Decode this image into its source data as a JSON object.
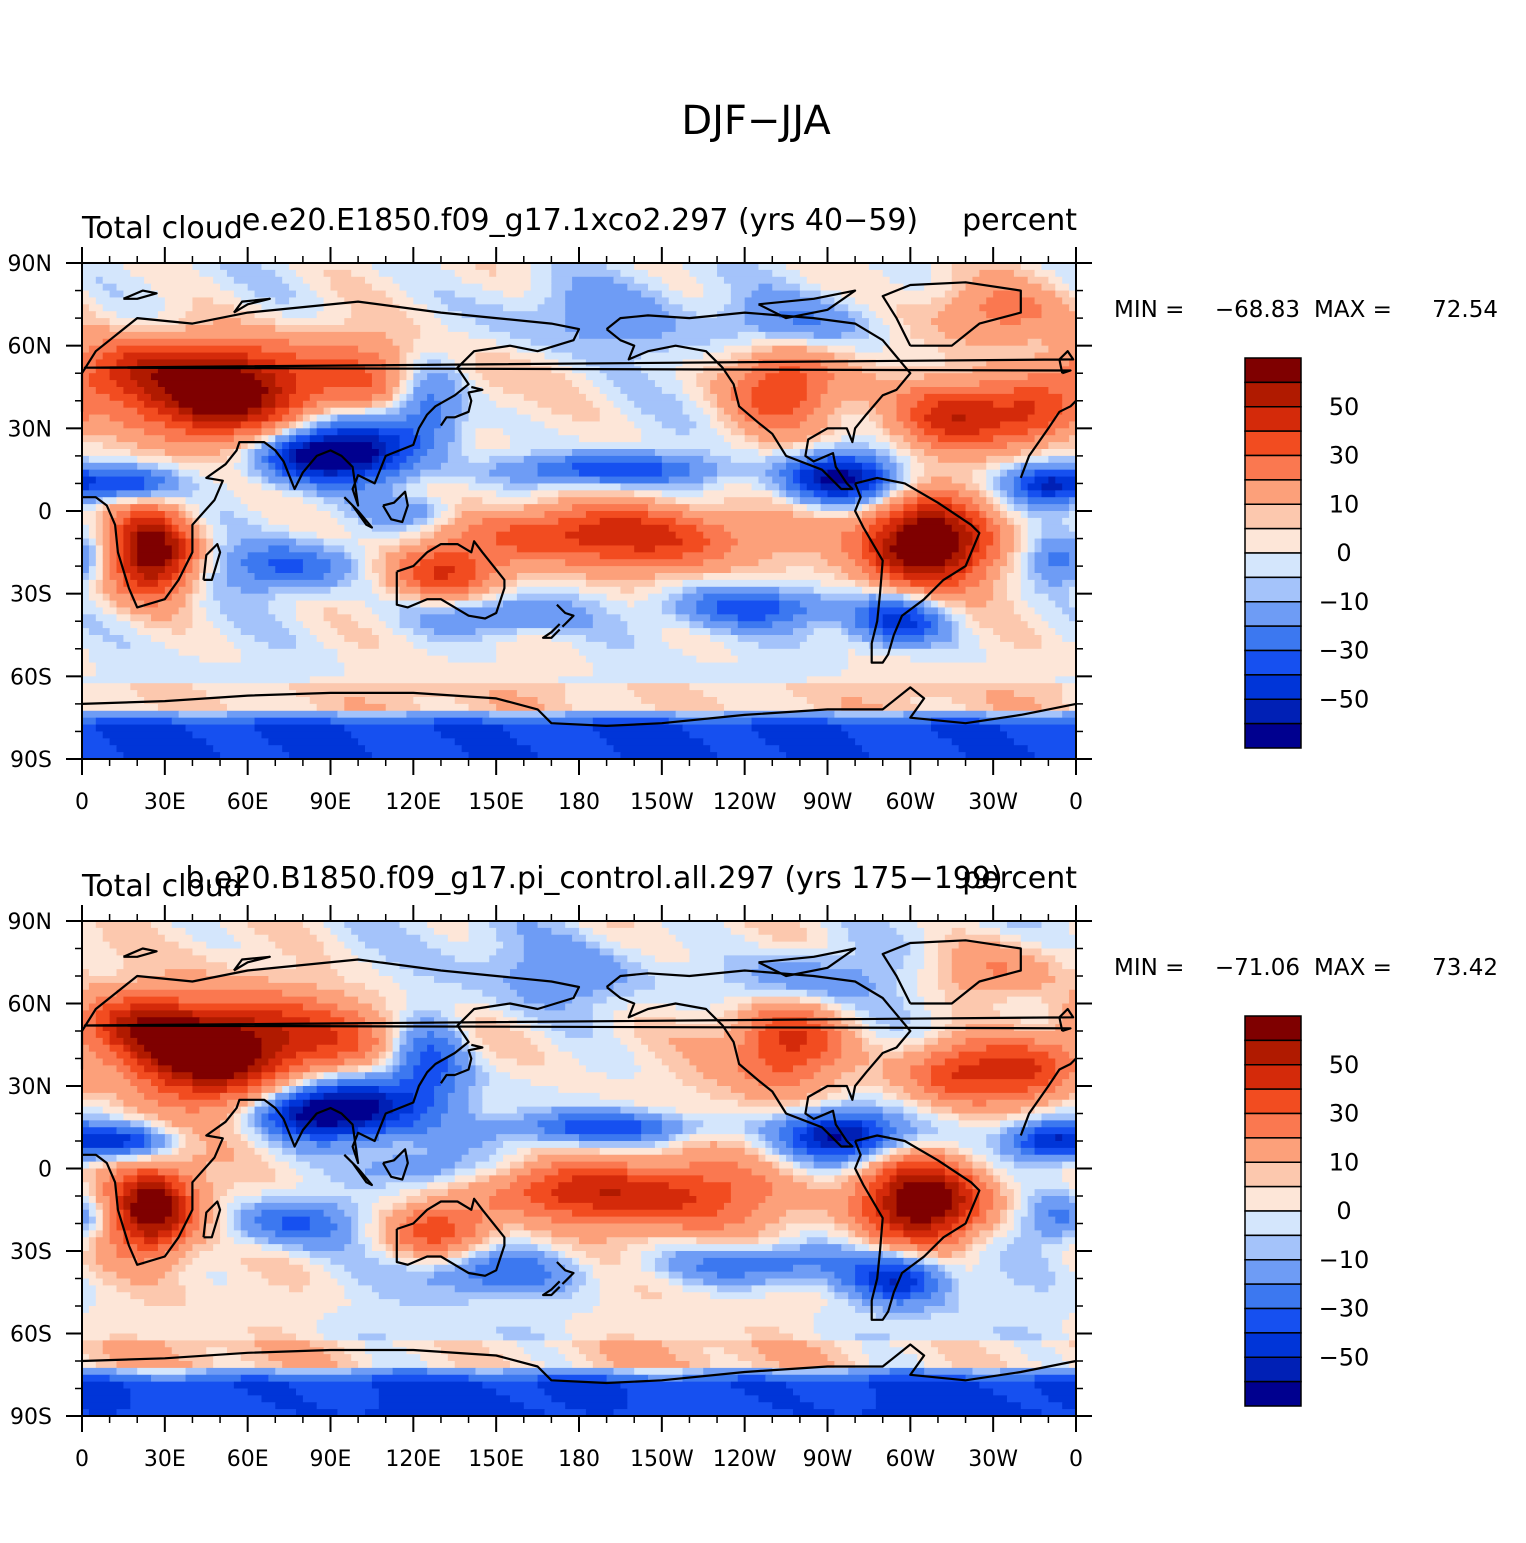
{
  "chart_data": {
    "type": "heatmap",
    "title": "DJF−JJA",
    "lat_tick_labels": [
      "90N",
      "60N",
      "30N",
      "0",
      "30S",
      "60S",
      "90S"
    ],
    "lon_tick_labels": [
      "0",
      "30E",
      "60E",
      "90E",
      "120E",
      "150E",
      "180",
      "150W",
      "120W",
      "90W",
      "60W",
      "30W",
      "0"
    ],
    "lon_range": [
      0,
      360
    ],
    "lat_range": [
      -90,
      90
    ],
    "colorbar": {
      "levels": [
        -60,
        -50,
        -40,
        -30,
        -20,
        -10,
        -5,
        0,
        5,
        10,
        20,
        30,
        40,
        50,
        60
      ],
      "tick_labels": [
        "50",
        "30",
        "10",
        "0",
        "−10",
        "−30",
        "−50"
      ],
      "tick_values": [
        50,
        30,
        10,
        0,
        -10,
        -30,
        -50
      ],
      "colors": [
        "#00008f",
        "#0020b5",
        "#0035d8",
        "#1650f0",
        "#3c78f0",
        "#6e9cf5",
        "#a4c3fa",
        "#d4e6fc",
        "#fde6d8",
        "#fcc8ae",
        "#fca07a",
        "#fa7850",
        "#f24c20",
        "#d42a0a",
        "#b01a00",
        "#7f0000"
      ]
    },
    "panels": [
      {
        "name": "e.e20.E1850.f09_g17.1xco2.297 (yrs 40−59)",
        "left_label": "Total cloud",
        "right_label": "percent",
        "min_label": "MIN = ",
        "min": "−68.83",
        "max_label": "MAX = ",
        "max": "72.54",
        "variant": 0
      },
      {
        "name": "b.e20.B1850.f09_g17.pi_control.all.297 (yrs 175−199)",
        "left_label": "Total cloud",
        "right_label": "percent",
        "min_label": "MIN = ",
        "min": "−71.06",
        "max_label": "MAX = ",
        "max": "73.42",
        "variant": 1
      }
    ]
  }
}
